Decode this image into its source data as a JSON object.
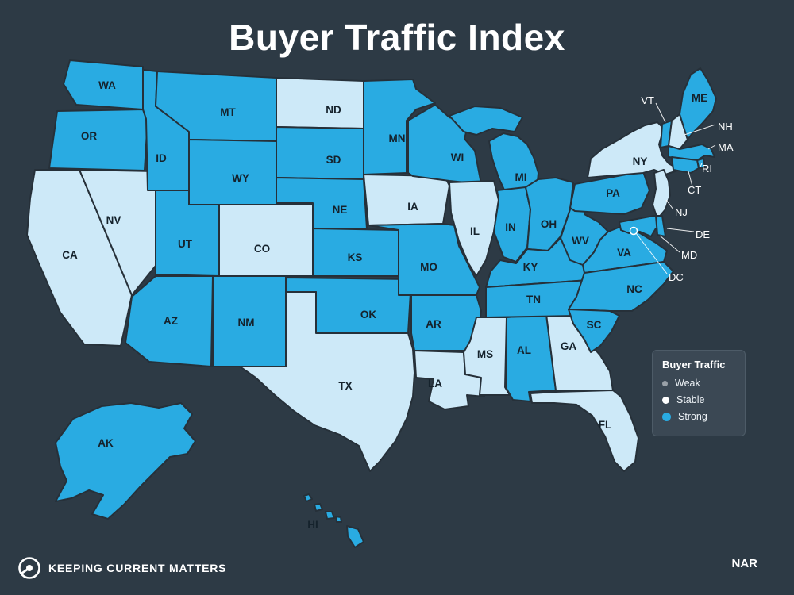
{
  "title": "Buyer Traffic Index",
  "legend": {
    "title": "Buyer Traffic",
    "items": [
      {
        "label": "Weak",
        "color": "#9aa1a8",
        "dot_size": 7
      },
      {
        "label": "Stable",
        "color": "#ffffff",
        "dot_size": 9
      },
      {
        "label": "Strong",
        "color": "#29abe2",
        "dot_size": 11
      }
    ]
  },
  "footer": {
    "brand": "KEEPING CURRENT MATTERS",
    "source": "NAR"
  },
  "colors": {
    "background": "#2d3a45",
    "strong": "#29abe2",
    "stable": "#cde9f8",
    "state_label": "#15222c",
    "callout_label": "#ffffff"
  },
  "map_data": {
    "type": "choropleth",
    "region": "United States",
    "metric": "Buyer Traffic",
    "classes": [
      "Weak",
      "Stable",
      "Strong"
    ],
    "states": [
      {
        "abbr": "AK",
        "status": "Strong"
      },
      {
        "abbr": "AL",
        "status": "Strong"
      },
      {
        "abbr": "AR",
        "status": "Strong"
      },
      {
        "abbr": "AZ",
        "status": "Strong"
      },
      {
        "abbr": "CA",
        "status": "Stable"
      },
      {
        "abbr": "CO",
        "status": "Stable"
      },
      {
        "abbr": "CT",
        "status": "Strong"
      },
      {
        "abbr": "DC",
        "status": "Strong"
      },
      {
        "abbr": "DE",
        "status": "Strong"
      },
      {
        "abbr": "FL",
        "status": "Stable"
      },
      {
        "abbr": "GA",
        "status": "Stable"
      },
      {
        "abbr": "HI",
        "status": "Strong"
      },
      {
        "abbr": "IA",
        "status": "Stable"
      },
      {
        "abbr": "ID",
        "status": "Strong"
      },
      {
        "abbr": "IL",
        "status": "Stable"
      },
      {
        "abbr": "IN",
        "status": "Strong"
      },
      {
        "abbr": "KS",
        "status": "Strong"
      },
      {
        "abbr": "KY",
        "status": "Strong"
      },
      {
        "abbr": "LA",
        "status": "Stable"
      },
      {
        "abbr": "MA",
        "status": "Strong"
      },
      {
        "abbr": "MD",
        "status": "Strong"
      },
      {
        "abbr": "ME",
        "status": "Strong"
      },
      {
        "abbr": "MI",
        "status": "Strong"
      },
      {
        "abbr": "MN",
        "status": "Strong"
      },
      {
        "abbr": "MO",
        "status": "Strong"
      },
      {
        "abbr": "MS",
        "status": "Stable"
      },
      {
        "abbr": "MT",
        "status": "Strong"
      },
      {
        "abbr": "NC",
        "status": "Strong"
      },
      {
        "abbr": "ND",
        "status": "Stable"
      },
      {
        "abbr": "NE",
        "status": "Strong"
      },
      {
        "abbr": "NH",
        "status": "Stable"
      },
      {
        "abbr": "NJ",
        "status": "Stable"
      },
      {
        "abbr": "NM",
        "status": "Strong"
      },
      {
        "abbr": "NV",
        "status": "Stable"
      },
      {
        "abbr": "NY",
        "status": "Stable"
      },
      {
        "abbr": "OH",
        "status": "Strong"
      },
      {
        "abbr": "OK",
        "status": "Strong"
      },
      {
        "abbr": "OR",
        "status": "Strong"
      },
      {
        "abbr": "PA",
        "status": "Strong"
      },
      {
        "abbr": "RI",
        "status": "Strong"
      },
      {
        "abbr": "SC",
        "status": "Strong"
      },
      {
        "abbr": "SD",
        "status": "Strong"
      },
      {
        "abbr": "TN",
        "status": "Strong"
      },
      {
        "abbr": "TX",
        "status": "Stable"
      },
      {
        "abbr": "UT",
        "status": "Strong"
      },
      {
        "abbr": "VA",
        "status": "Strong"
      },
      {
        "abbr": "VT",
        "status": "Strong"
      },
      {
        "abbr": "WA",
        "status": "Strong"
      },
      {
        "abbr": "WI",
        "status": "Strong"
      },
      {
        "abbr": "WV",
        "status": "Strong"
      },
      {
        "abbr": "WY",
        "status": "Strong"
      }
    ]
  }
}
